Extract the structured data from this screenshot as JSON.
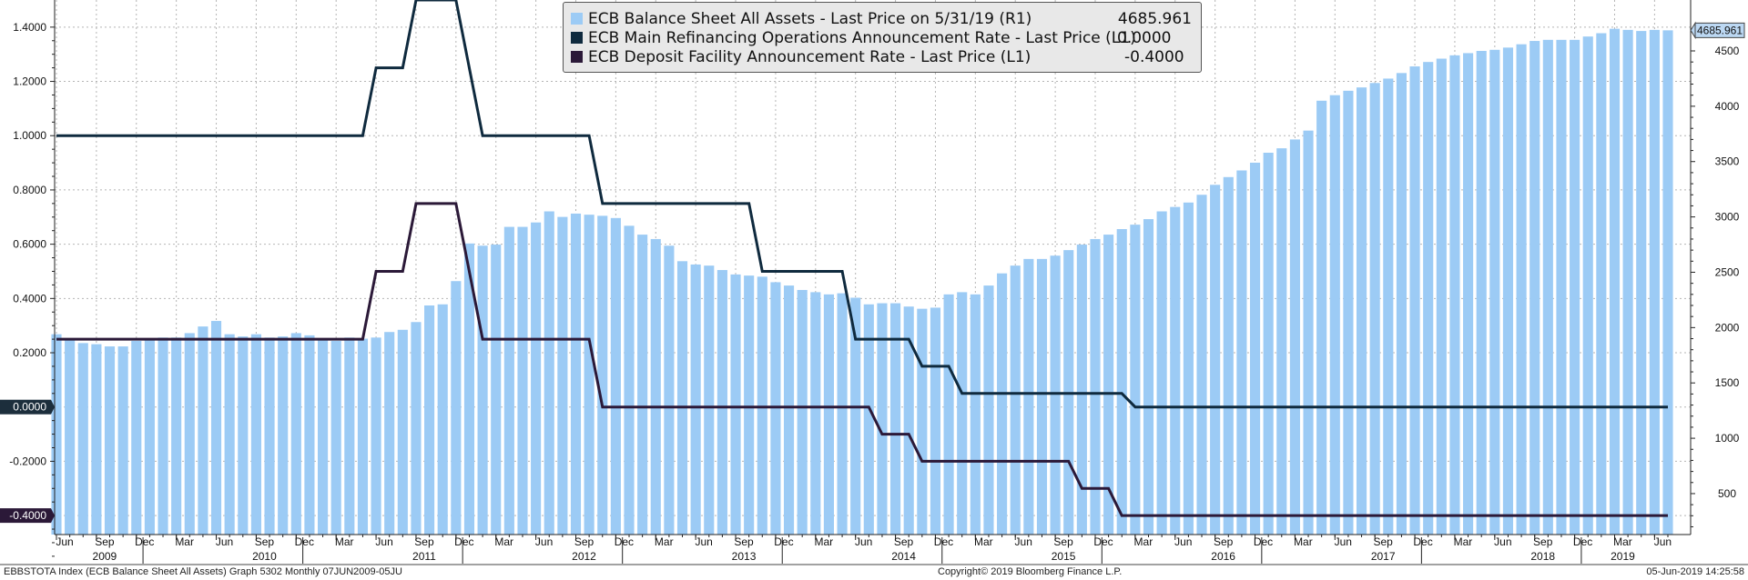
{
  "footer": {
    "left": "EBBSTOTA Index (ECB Balance Sheet All Assets) Graph 5302  Monthly 07JUN2009-05JU",
    "center": "Copyright© 2019 Bloomberg Finance L.P.",
    "right": "05-Jun-2019 14:25:58"
  },
  "colors": {
    "bars": "#9ccbf5",
    "mro": "#0f2a3e",
    "deposit": "#2b1938",
    "grid": "#b5b5b5",
    "tag_left": "#1c2e3c",
    "tag_left2": "#2b1938",
    "tag_right": "#bcd8f3"
  },
  "chart_data": {
    "type": "bar",
    "title": "",
    "legend_position": "top-center",
    "grid": true,
    "x_tick_labels": [
      "Jun",
      "Sep",
      "Dec",
      "Mar",
      "Jun",
      "Sep",
      "Dec",
      "Mar",
      "Jun",
      "Sep",
      "Dec",
      "Mar",
      "Jun",
      "Sep",
      "Dec",
      "Mar",
      "Jun",
      "Sep",
      "Dec",
      "Mar",
      "Jun",
      "Sep",
      "Dec",
      "Mar",
      "Jun",
      "Sep",
      "Dec",
      "Mar",
      "Jun",
      "Sep",
      "Dec",
      "Mar",
      "Jun",
      "Sep",
      "Dec",
      "Mar",
      "Jun",
      "Sep",
      "Dec",
      "Mar",
      "Jun"
    ],
    "x_year_labels": [
      "2009",
      "2010",
      "2011",
      "2012",
      "2013",
      "2014",
      "2015",
      "2016",
      "2017",
      "2018",
      "2019"
    ],
    "left_axis": {
      "ticks": [
        "1.4000",
        "1.2000",
        "1.0000",
        "0.8000",
        "0.6000",
        "0.4000",
        "0.2000",
        "0.0000",
        "-0.2000",
        "-0.4000"
      ],
      "tick_values": [
        1.4,
        1.2,
        1.0,
        0.8,
        0.6,
        0.4,
        0.2,
        0.0,
        -0.2,
        -0.4
      ],
      "range": [
        -0.47,
        1.5
      ],
      "highlighted_labels": [
        "0.0000",
        "-0.4000"
      ]
    },
    "right_axis": {
      "ticks": [
        "4500",
        "4000",
        "3500",
        "3000",
        "2500",
        "2000",
        "1500",
        "1000",
        "500"
      ],
      "tick_values": [
        4500,
        4000,
        3500,
        3000,
        2500,
        2000,
        1500,
        1000,
        500
      ],
      "range": [
        130,
        4960
      ],
      "highlighted_label": "4685.961"
    },
    "series": [
      {
        "name": "ECB Balance Sheet All Assets - Last Price on 5/31/19 (R1)",
        "last_value": "4685.961",
        "axis": "right",
        "kind": "bar",
        "values": [
          1940,
          1890,
          1860,
          1850,
          1830,
          1830,
          1880,
          1900,
          1910,
          1910,
          1950,
          2010,
          2060,
          1940,
          1920,
          1940,
          1910,
          1920,
          1950,
          1930,
          1900,
          1880,
          1910,
          1900,
          1910,
          1960,
          1980,
          2050,
          2200,
          2210,
          2420,
          2760,
          2740,
          2750,
          2910,
          2910,
          2950,
          3050,
          3000,
          3030,
          3020,
          3010,
          2990,
          2920,
          2840,
          2800,
          2740,
          2600,
          2570,
          2560,
          2520,
          2480,
          2470,
          2460,
          2410,
          2380,
          2340,
          2320,
          2300,
          2310,
          2270,
          2210,
          2220,
          2220,
          2190,
          2170,
          2180,
          2300,
          2320,
          2300,
          2380,
          2490,
          2560,
          2620,
          2620,
          2650,
          2700,
          2750,
          2800,
          2840,
          2890,
          2930,
          2980,
          3050,
          3090,
          3130,
          3200,
          3290,
          3360,
          3420,
          3490,
          3580,
          3620,
          3700,
          3780,
          4050,
          4100,
          4140,
          4170,
          4210,
          4250,
          4300,
          4360,
          4400,
          4430,
          4460,
          4480,
          4500,
          4510,
          4530,
          4560,
          4590,
          4600,
          4600,
          4600,
          4630,
          4660,
          4700,
          4690,
          4680,
          4690,
          4685.961
        ],
        "bar_gaps_after_index": [
          3,
          8,
          14,
          19,
          25,
          28,
          36,
          42,
          48,
          54,
          61,
          65,
          72,
          79,
          85,
          88,
          96,
          102,
          108,
          114
        ]
      },
      {
        "name": "ECB Main Refinancing Operations Announcement Rate - Last Price (L1)",
        "last_value": "0.0000",
        "axis": "left",
        "kind": "step",
        "points": [
          [
            0,
            1.0
          ],
          [
            23,
            1.0
          ],
          [
            24,
            1.25
          ],
          [
            26,
            1.25
          ],
          [
            27,
            1.5
          ],
          [
            30,
            1.5
          ],
          [
            32,
            1.0
          ],
          [
            40,
            1.0
          ],
          [
            41,
            0.75
          ],
          [
            52,
            0.75
          ],
          [
            53,
            0.5
          ],
          [
            59,
            0.5
          ],
          [
            60,
            0.25
          ],
          [
            64,
            0.25
          ],
          [
            65,
            0.15
          ],
          [
            67,
            0.15
          ],
          [
            68,
            0.05
          ],
          [
            80,
            0.05
          ],
          [
            81,
            0.0
          ],
          [
            121,
            0.0
          ]
        ]
      },
      {
        "name": "ECB Deposit Facility Announcement Rate - Last Price (L1)",
        "last_value": "-0.4000",
        "axis": "left",
        "kind": "step",
        "points": [
          [
            0,
            0.25
          ],
          [
            23,
            0.25
          ],
          [
            24,
            0.5
          ],
          [
            26,
            0.5
          ],
          [
            27,
            0.75
          ],
          [
            30,
            0.75
          ],
          [
            32,
            0.25
          ],
          [
            40,
            0.25
          ],
          [
            41,
            0.0
          ],
          [
            61,
            0.0
          ],
          [
            62,
            -0.1
          ],
          [
            64,
            -0.1
          ],
          [
            65,
            -0.2
          ],
          [
            76,
            -0.2
          ],
          [
            77,
            -0.3
          ],
          [
            79,
            -0.3
          ],
          [
            80,
            -0.4
          ],
          [
            121,
            -0.4
          ]
        ]
      }
    ]
  }
}
